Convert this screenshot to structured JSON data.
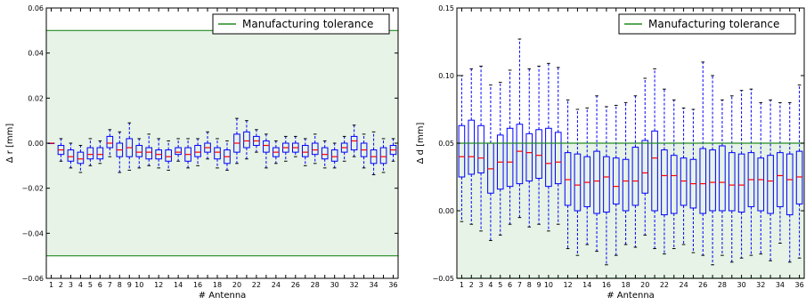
{
  "chart_data": [
    {
      "type": "box",
      "xlabel": "# Antenna",
      "ylabel": "Δ r [mm]",
      "ylim": [
        -0.06,
        0.06
      ],
      "yticks": [
        "0.06",
        "0.04",
        "0.02",
        "0.00",
        "−0.02",
        "−0.04",
        "−0.06"
      ],
      "ytick_values": [
        0.06,
        0.04,
        0.02,
        0.0,
        -0.02,
        -0.04,
        -0.06
      ],
      "xticks": [
        "1",
        "2",
        "3",
        "4",
        "5",
        "6",
        "7",
        "8",
        "9",
        "10",
        "12",
        "14",
        "16",
        "18",
        "20",
        "22",
        "24",
        "26",
        "28",
        "30",
        "32",
        "34",
        "36"
      ],
      "xlim": [
        0.5,
        36.5
      ],
      "legend": {
        "label": "Manufacturing tolerance",
        "position": "top-right"
      },
      "tolerance": [
        -0.05,
        0.05
      ],
      "colors": {
        "band": "#e6f3e6",
        "line": "#228b22",
        "box": "#0000ff",
        "median": "#ff0000"
      },
      "boxes": [
        {
          "x": 1,
          "min": 0.0,
          "q1": 0.0,
          "median": 0.0,
          "q3": 0.0,
          "max": 0.0
        },
        {
          "x": 2,
          "min": -0.008,
          "q1": -0.005,
          "median": -0.003,
          "q3": -0.001,
          "max": 0.002
        },
        {
          "x": 3,
          "min": -0.011,
          "q1": -0.008,
          "median": -0.006,
          "q3": -0.003,
          "max": 0.0
        },
        {
          "x": 4,
          "min": -0.013,
          "q1": -0.009,
          "median": -0.007,
          "q3": -0.004,
          "max": -0.001
        },
        {
          "x": 5,
          "min": -0.01,
          "q1": -0.007,
          "median": -0.005,
          "q3": -0.002,
          "max": 0.002
        },
        {
          "x": 6,
          "min": -0.009,
          "q1": -0.007,
          "median": -0.005,
          "q3": -0.002,
          "max": 0.001
        },
        {
          "x": 7,
          "min": -0.006,
          "q1": -0.002,
          "median": 0.0,
          "q3": 0.003,
          "max": 0.006
        },
        {
          "x": 8,
          "min": -0.013,
          "q1": -0.006,
          "median": -0.003,
          "q3": 0.0,
          "max": 0.005
        },
        {
          "x": 9,
          "min": -0.012,
          "q1": -0.006,
          "median": -0.002,
          "q3": 0.002,
          "max": 0.009
        },
        {
          "x": 10,
          "min": -0.011,
          "q1": -0.006,
          "median": -0.004,
          "q3": -0.001,
          "max": 0.002
        },
        {
          "x": 11,
          "min": -0.01,
          "q1": -0.007,
          "median": -0.004,
          "q3": -0.002,
          "max": 0.004
        },
        {
          "x": 12,
          "min": -0.011,
          "q1": -0.007,
          "median": -0.005,
          "q3": -0.003,
          "max": 0.002
        },
        {
          "x": 13,
          "min": -0.012,
          "q1": -0.008,
          "median": -0.006,
          "q3": -0.003,
          "max": 0.001
        },
        {
          "x": 14,
          "min": -0.008,
          "q1": -0.005,
          "median": -0.004,
          "q3": -0.002,
          "max": 0.002
        },
        {
          "x": 15,
          "min": -0.011,
          "q1": -0.008,
          "median": -0.005,
          "q3": -0.002,
          "max": 0.002
        },
        {
          "x": 16,
          "min": -0.01,
          "q1": -0.006,
          "median": -0.004,
          "q3": -0.001,
          "max": 0.002
        },
        {
          "x": 17,
          "min": -0.007,
          "q1": -0.004,
          "median": -0.002,
          "q3": 0.0,
          "max": 0.005
        },
        {
          "x": 18,
          "min": -0.011,
          "q1": -0.007,
          "median": -0.004,
          "q3": -0.002,
          "max": 0.002
        },
        {
          "x": 19,
          "min": -0.012,
          "q1": -0.009,
          "median": -0.006,
          "q3": -0.003,
          "max": 0.001
        },
        {
          "x": 20,
          "min": -0.009,
          "q1": -0.004,
          "median": 0.0,
          "q3": 0.004,
          "max": 0.011
        },
        {
          "x": 21,
          "min": -0.007,
          "q1": -0.002,
          "median": 0.001,
          "q3": 0.005,
          "max": 0.01
        },
        {
          "x": 22,
          "min": -0.004,
          "q1": -0.001,
          "median": 0.001,
          "q3": 0.003,
          "max": 0.006
        },
        {
          "x": 23,
          "min": -0.011,
          "q1": -0.004,
          "median": -0.001,
          "q3": 0.001,
          "max": 0.004
        },
        {
          "x": 24,
          "min": -0.009,
          "q1": -0.006,
          "median": -0.004,
          "q3": -0.002,
          "max": 0.001
        },
        {
          "x": 25,
          "min": -0.008,
          "q1": -0.004,
          "median": -0.002,
          "q3": 0.0,
          "max": 0.003
        },
        {
          "x": 26,
          "min": -0.006,
          "q1": -0.004,
          "median": -0.002,
          "q3": 0.0,
          "max": 0.003
        },
        {
          "x": 27,
          "min": -0.01,
          "q1": -0.006,
          "median": -0.004,
          "q3": -0.001,
          "max": 0.002
        },
        {
          "x": 28,
          "min": -0.009,
          "q1": -0.005,
          "median": -0.003,
          "q3": 0.0,
          "max": 0.004
        },
        {
          "x": 29,
          "min": -0.011,
          "q1": -0.007,
          "median": -0.005,
          "q3": -0.002,
          "max": 0.001
        },
        {
          "x": 30,
          "min": -0.011,
          "q1": -0.008,
          "median": -0.006,
          "q3": -0.003,
          "max": 0.0
        },
        {
          "x": 31,
          "min": -0.008,
          "q1": -0.004,
          "median": -0.002,
          "q3": 0.0,
          "max": 0.003
        },
        {
          "x": 32,
          "min": -0.006,
          "q1": -0.003,
          "median": 0.001,
          "q3": 0.003,
          "max": 0.008
        },
        {
          "x": 33,
          "min": -0.011,
          "q1": -0.006,
          "median": -0.003,
          "q3": 0.0,
          "max": 0.004
        },
        {
          "x": 34,
          "min": -0.014,
          "q1": -0.009,
          "median": -0.006,
          "q3": -0.003,
          "max": 0.005
        },
        {
          "x": 35,
          "min": -0.013,
          "q1": -0.009,
          "median": -0.006,
          "q3": -0.002,
          "max": 0.002
        },
        {
          "x": 36,
          "min": -0.008,
          "q1": -0.005,
          "median": -0.003,
          "q3": -0.001,
          "max": 0.002
        }
      ]
    },
    {
      "type": "box",
      "xlabel": "# Antenna",
      "ylabel": "Δ d [mm]",
      "ylim": [
        -0.05,
        0.15
      ],
      "yticks": [
        "0.15",
        "0.10",
        "0.05",
        "0.00",
        "−0.05"
      ],
      "ytick_values": [
        0.15,
        0.1,
        0.05,
        0.0,
        -0.05
      ],
      "xticks": [
        "1",
        "2",
        "3",
        "4",
        "5",
        "6",
        "7",
        "8",
        "9",
        "10",
        "12",
        "14",
        "16",
        "18",
        "20",
        "22",
        "24",
        "26",
        "28",
        "30",
        "32",
        "34",
        "36"
      ],
      "xlim": [
        0.5,
        36.5
      ],
      "legend": {
        "label": "Manufacturing tolerance",
        "position": "top-right"
      },
      "tolerance": [
        -0.05,
        0.05
      ],
      "colors": {
        "band": "#e6f3e6",
        "line": "#228b22",
        "box": "#0000ff",
        "median": "#ff0000"
      },
      "boxes": [
        {
          "x": 1,
          "min": -0.008,
          "q1": 0.025,
          "median": 0.04,
          "q3": 0.063,
          "max": 0.1
        },
        {
          "x": 2,
          "min": -0.01,
          "q1": 0.027,
          "median": 0.04,
          "q3": 0.067,
          "max": 0.105
        },
        {
          "x": 3,
          "min": -0.015,
          "q1": 0.028,
          "median": 0.039,
          "q3": 0.063,
          "max": 0.107
        },
        {
          "x": 4,
          "min": -0.022,
          "q1": 0.013,
          "median": 0.031,
          "q3": 0.05,
          "max": 0.093
        },
        {
          "x": 5,
          "min": -0.018,
          "q1": 0.016,
          "median": 0.036,
          "q3": 0.056,
          "max": 0.095
        },
        {
          "x": 6,
          "min": -0.01,
          "q1": 0.018,
          "median": 0.036,
          "q3": 0.061,
          "max": 0.104
        },
        {
          "x": 7,
          "min": -0.005,
          "q1": 0.02,
          "median": 0.044,
          "q3": 0.064,
          "max": 0.127
        },
        {
          "x": 8,
          "min": -0.012,
          "q1": 0.022,
          "median": 0.043,
          "q3": 0.057,
          "max": 0.105
        },
        {
          "x": 9,
          "min": -0.01,
          "q1": 0.024,
          "median": 0.041,
          "q3": 0.06,
          "max": 0.107
        },
        {
          "x": 10,
          "min": -0.015,
          "q1": 0.018,
          "median": 0.035,
          "q3": 0.061,
          "max": 0.109
        },
        {
          "x": 11,
          "min": -0.01,
          "q1": 0.02,
          "median": 0.036,
          "q3": 0.058,
          "max": 0.106
        },
        {
          "x": 12,
          "min": -0.028,
          "q1": 0.004,
          "median": 0.023,
          "q3": 0.043,
          "max": 0.082
        },
        {
          "x": 13,
          "min": -0.033,
          "q1": 0.0,
          "median": 0.019,
          "q3": 0.042,
          "max": 0.075
        },
        {
          "x": 14,
          "min": -0.025,
          "q1": 0.003,
          "median": 0.021,
          "q3": 0.04,
          "max": 0.076
        },
        {
          "x": 15,
          "min": -0.03,
          "q1": -0.002,
          "median": 0.022,
          "q3": 0.044,
          "max": 0.085
        },
        {
          "x": 16,
          "min": -0.04,
          "q1": -0.001,
          "median": 0.025,
          "q3": 0.04,
          "max": 0.077
        },
        {
          "x": 17,
          "min": -0.033,
          "q1": 0.005,
          "median": 0.018,
          "q3": 0.039,
          "max": 0.078
        },
        {
          "x": 18,
          "min": -0.025,
          "q1": 0.0,
          "median": 0.022,
          "q3": 0.038,
          "max": 0.08
        },
        {
          "x": 19,
          "min": -0.027,
          "q1": 0.004,
          "median": 0.022,
          "q3": 0.047,
          "max": 0.085
        },
        {
          "x": 20,
          "min": -0.018,
          "q1": 0.013,
          "median": 0.028,
          "q3": 0.052,
          "max": 0.098
        },
        {
          "x": 21,
          "min": -0.028,
          "q1": 0.0,
          "median": 0.039,
          "q3": 0.059,
          "max": 0.105
        },
        {
          "x": 22,
          "min": -0.032,
          "q1": -0.003,
          "median": 0.026,
          "q3": 0.045,
          "max": 0.09
        },
        {
          "x": 23,
          "min": -0.028,
          "q1": -0.002,
          "median": 0.026,
          "q3": 0.041,
          "max": 0.082
        },
        {
          "x": 24,
          "min": -0.025,
          "q1": 0.004,
          "median": 0.022,
          "q3": 0.039,
          "max": 0.076
        },
        {
          "x": 25,
          "min": -0.031,
          "q1": 0.002,
          "median": 0.02,
          "q3": 0.038,
          "max": 0.075
        },
        {
          "x": 26,
          "min": -0.033,
          "q1": -0.002,
          "median": 0.02,
          "q3": 0.046,
          "max": 0.11
        },
        {
          "x": 27,
          "min": -0.04,
          "q1": 0.0,
          "median": 0.021,
          "q3": 0.045,
          "max": 0.1
        },
        {
          "x": 28,
          "min": -0.033,
          "q1": 0.0,
          "median": 0.021,
          "q3": 0.048,
          "max": 0.082
        },
        {
          "x": 29,
          "min": -0.038,
          "q1": 0.0,
          "median": 0.019,
          "q3": 0.043,
          "max": 0.085
        },
        {
          "x": 30,
          "min": -0.035,
          "q1": -0.001,
          "median": 0.019,
          "q3": 0.042,
          "max": 0.089
        },
        {
          "x": 31,
          "min": -0.033,
          "q1": 0.003,
          "median": 0.023,
          "q3": 0.043,
          "max": 0.09
        },
        {
          "x": 32,
          "min": -0.032,
          "q1": 0.0,
          "median": 0.023,
          "q3": 0.039,
          "max": 0.08
        },
        {
          "x": 33,
          "min": -0.037,
          "q1": -0.002,
          "median": 0.022,
          "q3": 0.041,
          "max": 0.082
        },
        {
          "x": 34,
          "min": -0.024,
          "q1": 0.003,
          "median": 0.026,
          "q3": 0.043,
          "max": 0.08
        },
        {
          "x": 35,
          "min": -0.038,
          "q1": -0.003,
          "median": 0.023,
          "q3": 0.042,
          "max": 0.08
        },
        {
          "x": 36,
          "min": -0.035,
          "q1": 0.005,
          "median": 0.025,
          "q3": 0.044,
          "max": 0.093
        }
      ]
    }
  ]
}
